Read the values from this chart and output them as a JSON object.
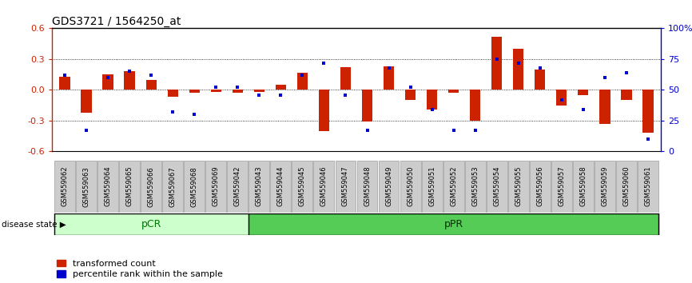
{
  "title": "GDS3721 / 1564250_at",
  "samples": [
    "GSM559062",
    "GSM559063",
    "GSM559064",
    "GSM559065",
    "GSM559066",
    "GSM559067",
    "GSM559068",
    "GSM559069",
    "GSM559042",
    "GSM559043",
    "GSM559044",
    "GSM559045",
    "GSM559046",
    "GSM559047",
    "GSM559048",
    "GSM559049",
    "GSM559050",
    "GSM559051",
    "GSM559052",
    "GSM559053",
    "GSM559054",
    "GSM559055",
    "GSM559056",
    "GSM559057",
    "GSM559058",
    "GSM559059",
    "GSM559060",
    "GSM559061"
  ],
  "red_bars": [
    0.13,
    -0.22,
    0.15,
    0.18,
    0.1,
    -0.07,
    -0.03,
    -0.02,
    -0.03,
    -0.02,
    0.05,
    0.17,
    -0.4,
    0.22,
    -0.31,
    0.23,
    -0.1,
    -0.19,
    -0.03,
    -0.3,
    0.52,
    0.4,
    0.2,
    -0.15,
    -0.05,
    -0.33,
    -0.1,
    -0.42
  ],
  "blue_dots_pct": [
    62,
    17,
    60,
    65,
    62,
    32,
    30,
    52,
    52,
    46,
    46,
    62,
    72,
    46,
    17,
    68,
    52,
    34,
    17,
    17,
    75,
    72,
    68,
    42,
    34,
    60,
    64,
    10
  ],
  "pCR_count": 9,
  "pPR_count": 19,
  "ylim": [
    -0.6,
    0.6
  ],
  "yticks_red": [
    -0.6,
    -0.3,
    0.0,
    0.3,
    0.6
  ],
  "yticks_blue_pct": [
    0,
    25,
    50,
    75,
    100
  ],
  "yticks_blue_labels": [
    "0",
    "25",
    "50",
    "75",
    "100%"
  ],
  "hlines": [
    0.3,
    0.0,
    -0.3
  ],
  "bar_color": "#CC2200",
  "dot_color": "#0000CC",
  "pCR_color": "#CCFFCC",
  "pPR_color": "#55CC55",
  "label_color_pCR": "#007700",
  "label_color_pPR": "#003300",
  "xtick_box_color": "#CCCCCC",
  "xtick_box_edge": "#888888",
  "background_color": "#FFFFFF",
  "title_fontsize": 10,
  "tick_fontsize": 6,
  "bar_width": 0.5
}
